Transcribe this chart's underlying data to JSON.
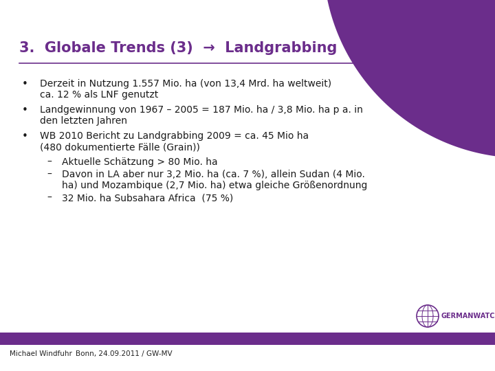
{
  "title_part1": "3.  Globale Trends (3)  ",
  "title_arrow": "→",
  "title_part2": "  Landgrabbing",
  "title_color": "#6B2D8B",
  "title_fontsize": 15,
  "background_color": "#FFFFFF",
  "bullet_points": [
    {
      "level": 0,
      "lines": [
        "Derzeit in Nutzung 1.557 Mio. ha (von 13,4 Mrd. ha weltweit)",
        "ca. 12 % als LNF genutzt"
      ]
    },
    {
      "level": 0,
      "lines": [
        "Landgewinnung von 1967 – 2005 = 187 Mio. ha / 3,8 Mio. ha p a. in",
        "den letzten Jahren"
      ]
    },
    {
      "level": 0,
      "lines": [
        "WB 2010 Bericht zu Landgrabbing 2009 = ca. 45 Mio ha",
        "(480 dokumentierte Fälle (Grain))"
      ]
    },
    {
      "level": 1,
      "lines": [
        "Aktuelle Schätzung > 80 Mio. ha"
      ]
    },
    {
      "level": 1,
      "lines": [
        "Davon in LA aber nur 3,2 Mio. ha (ca. 7 %), allein Sudan (4 Mio.",
        "ha) und Mozambique (2,7 Mio. ha) etwa gleiche Größenordnung"
      ]
    },
    {
      "level": 1,
      "lines": [
        "32 Mio. ha Subsahara Africa  (75 %)"
      ]
    }
  ],
  "footer_left_1": "Michael Windfuhr",
  "footer_left_2": "Bonn, 24.09.2011 / GW-MV",
  "footer_text_color": "#222222",
  "footer_fontsize": 7.5,
  "accent_color": "#6B2D8B",
  "text_color": "#1A1A1A",
  "body_fontsize": 10,
  "curve_color": "#6B2D8B"
}
